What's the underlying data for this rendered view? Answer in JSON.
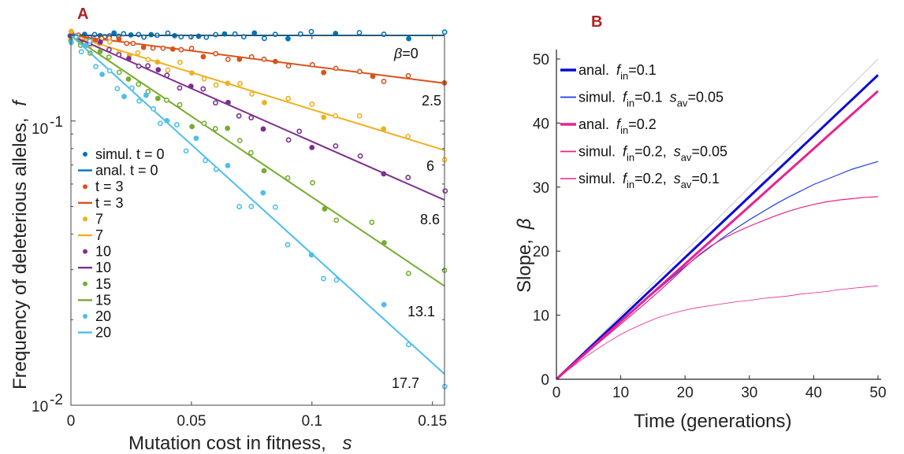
{
  "colors": {
    "t0": "#0072bd",
    "t3": "#d95319",
    "t7": "#edb120",
    "t10": "#7e2f8e",
    "t15": "#77ac30",
    "t20": "#4dbeee",
    "anal01": "#0b0bd6",
    "simul01": "#1a3fe0",
    "anal02": "#e8238f",
    "simul02": "#e8238f",
    "diag": "#c8c8c8"
  },
  "panel_a": {
    "letter": "A",
    "ylabel": "Frequency of deleterious alleles,",
    "ylabel_var": "f",
    "xlabel": "Mutation cost in fitness,",
    "xlabel_var": "s",
    "ytick_base": "10",
    "ytick_exp_top": "-1",
    "ytick_exp_bottom": "-2",
    "xtick_labels": [
      "0",
      "0.05",
      "0.1",
      "0.15"
    ],
    "beta_symbol": "β",
    "slope_labels": [
      "=0",
      "2.5",
      "6",
      "8.6",
      "13.1",
      "17.7"
    ],
    "legend": [
      {
        "label": "simul. t = 0",
        "kind": "dot",
        "color_key": "t0"
      },
      {
        "label": "anal. t = 0",
        "kind": "line",
        "color_key": "t0"
      },
      {
        "label": "t = 3",
        "kind": "dot",
        "color_key": "t3"
      },
      {
        "label": "t = 3",
        "kind": "line",
        "color_key": "t3"
      },
      {
        "label": "7",
        "kind": "dot",
        "color_key": "t7"
      },
      {
        "label": "7",
        "kind": "line",
        "color_key": "t7"
      },
      {
        "label": "10",
        "kind": "dot",
        "color_key": "t10"
      },
      {
        "label": "10",
        "kind": "line",
        "color_key": "t10"
      },
      {
        "label": "15",
        "kind": "dot",
        "color_key": "t15"
      },
      {
        "label": "15",
        "kind": "line",
        "color_key": "t15"
      },
      {
        "label": "20",
        "kind": "dot",
        "color_key": "t20"
      },
      {
        "label": "20",
        "kind": "line",
        "color_key": "t20"
      }
    ]
  },
  "panel_b": {
    "letter": "B",
    "ylabel": "Slope,",
    "ylabel_var": "β",
    "xlabel": "Time (generations)",
    "xtick_labels": [
      "0",
      "10",
      "20",
      "30",
      "40",
      "50"
    ],
    "ytick_labels": [
      "0",
      "10",
      "20",
      "30",
      "40",
      "50"
    ],
    "legend": [
      {
        "pre": "anal.",
        "f_main": "f",
        "f_sub": "in",
        "f_val": "=0.1",
        "s_main": "",
        "s_sub": "",
        "s_val": "",
        "color_key": "anal01",
        "width": 3
      },
      {
        "pre": "simul.",
        "f_main": "f",
        "f_sub": "in",
        "f_val": "=0.1",
        "s_main": "s",
        "s_sub": "av",
        "s_val": "=0.05",
        "color_key": "simul01",
        "width": 1.2
      },
      {
        "pre": "anal.",
        "f_main": "f",
        "f_sub": "in",
        "f_val": "=0.2",
        "s_main": "",
        "s_sub": "",
        "s_val": "",
        "color_key": "anal02",
        "width": 3
      },
      {
        "pre": "simul.",
        "f_main": "f",
        "f_sub": "in",
        "f_val": "=0.2,",
        "s_main": "s",
        "s_sub": "av",
        "s_val": "=0.05",
        "color_key": "simul02",
        "width": 1.2
      },
      {
        "pre": "simul.",
        "f_main": "f",
        "f_sub": "in",
        "f_val": "=0.2,",
        "s_main": "s",
        "s_sub": "av",
        "s_val": "=0.1",
        "color_key": "simul02",
        "width": 0.8
      }
    ]
  },
  "chart_data": [
    {
      "type": "scatter",
      "title": "",
      "xlabel": "Mutation cost in fitness, s",
      "ylabel": "Frequency of deleterious alleles, f",
      "xlim": [
        0,
        0.155
      ],
      "ylim": [
        0.01,
        0.2
      ],
      "yscale": "log",
      "grid": false,
      "legend_position": "left",
      "series": [
        {
          "name": "t = 0",
          "color_key": "t0",
          "f0": 0.2,
          "beta": 0,
          "slope_label": "β=0",
          "noise": 0.018,
          "x": [
            0.0,
            0.002,
            0.004,
            0.006,
            0.008,
            0.01,
            0.012,
            0.014,
            0.016,
            0.018,
            0.02,
            0.022,
            0.025,
            0.028,
            0.03,
            0.033,
            0.036,
            0.04,
            0.043,
            0.046,
            0.05,
            0.053,
            0.056,
            0.06,
            0.064,
            0.068,
            0.072,
            0.076,
            0.08,
            0.085,
            0.09,
            0.095,
            0.1,
            0.11,
            0.12,
            0.13,
            0.14,
            0.155
          ]
        },
        {
          "name": "t = 3",
          "color_key": "t3",
          "f0": 0.2,
          "beta": 2.5,
          "slope_label": "2.5",
          "noise": 0.025,
          "x": [
            0.0,
            0.003,
            0.006,
            0.01,
            0.013,
            0.016,
            0.02,
            0.023,
            0.026,
            0.03,
            0.034,
            0.038,
            0.042,
            0.046,
            0.05,
            0.055,
            0.06,
            0.065,
            0.07,
            0.075,
            0.08,
            0.085,
            0.09,
            0.1,
            0.105,
            0.11,
            0.12,
            0.125,
            0.13,
            0.14,
            0.155
          ]
        },
        {
          "name": "7",
          "color_key": "t7",
          "f0": 0.2,
          "beta": 6,
          "slope_label": "6",
          "noise": 0.04,
          "x": [
            0.0,
            0.004,
            0.008,
            0.012,
            0.016,
            0.02,
            0.024,
            0.028,
            0.032,
            0.036,
            0.04,
            0.045,
            0.05,
            0.055,
            0.06,
            0.065,
            0.07,
            0.075,
            0.08,
            0.09,
            0.1,
            0.105,
            0.11,
            0.12,
            0.13,
            0.14,
            0.155
          ]
        },
        {
          "name": "10",
          "color_key": "t10",
          "f0": 0.2,
          "beta": 8.6,
          "slope_label": "8.6",
          "noise": 0.045,
          "x": [
            0.0,
            0.004,
            0.008,
            0.012,
            0.016,
            0.02,
            0.024,
            0.028,
            0.032,
            0.036,
            0.04,
            0.045,
            0.05,
            0.055,
            0.06,
            0.065,
            0.07,
            0.075,
            0.08,
            0.09,
            0.095,
            0.1,
            0.11,
            0.12,
            0.13,
            0.14,
            0.155
          ]
        },
        {
          "name": "15",
          "color_key": "t15",
          "f0": 0.2,
          "beta": 13.1,
          "slope_label": "13.1",
          "noise": 0.07,
          "x": [
            0.0,
            0.004,
            0.008,
            0.012,
            0.016,
            0.02,
            0.024,
            0.028,
            0.032,
            0.036,
            0.04,
            0.045,
            0.05,
            0.055,
            0.06,
            0.065,
            0.07,
            0.075,
            0.08,
            0.09,
            0.1,
            0.105,
            0.11,
            0.125,
            0.13,
            0.14,
            0.155
          ]
        },
        {
          "name": "20",
          "color_key": "t20",
          "f0": 0.2,
          "beta": 17.7,
          "slope_label": "17.7",
          "noise": 0.1,
          "x": [
            0.0,
            0.002,
            0.004,
            0.006,
            0.008,
            0.01,
            0.013,
            0.016,
            0.019,
            0.022,
            0.025,
            0.028,
            0.031,
            0.034,
            0.037,
            0.04,
            0.044,
            0.048,
            0.052,
            0.056,
            0.06,
            0.065,
            0.07,
            0.075,
            0.08,
            0.085,
            0.09,
            0.1,
            0.105,
            0.11,
            0.13,
            0.14,
            0.155
          ]
        }
      ]
    },
    {
      "type": "line",
      "title": "",
      "xlabel": "Time (generations)",
      "ylabel": "Slope, β",
      "xlim": [
        0,
        50
      ],
      "ylim": [
        0,
        50
      ],
      "grid": false,
      "legend_position": "top-left",
      "x": [
        0,
        2,
        4,
        6,
        8,
        10,
        12,
        14,
        16,
        18,
        20,
        22,
        24,
        26,
        28,
        30,
        32,
        34,
        36,
        38,
        40,
        42,
        44,
        46,
        48,
        50
      ],
      "series": [
        {
          "name": "diagonal",
          "color_key": "diag",
          "width": 1,
          "values": [
            0,
            2,
            4,
            6,
            8,
            10,
            12,
            14,
            16,
            18,
            20,
            22,
            24,
            26,
            28,
            30,
            32,
            34,
            36,
            38,
            40,
            42,
            44,
            46,
            48,
            50
          ]
        },
        {
          "name": "anal. f_in=0.1",
          "color_key": "anal01",
          "width": 3,
          "values": [
            0,
            1.9,
            3.8,
            5.7,
            7.6,
            9.5,
            11.4,
            13.3,
            15.2,
            17.1,
            19,
            20.9,
            22.8,
            24.7,
            26.6,
            28.5,
            30.4,
            32.3,
            34.2,
            36.1,
            38,
            39.9,
            41.8,
            43.7,
            45.6,
            47.5
          ]
        },
        {
          "name": "simul. f_in=0.1 s_av=0.05",
          "color_key": "simul01",
          "width": 1.2,
          "values": [
            0,
            1.8,
            3.6,
            5.4,
            7.2,
            9,
            10.7,
            12.5,
            14.2,
            15.9,
            17.6,
            19.2,
            20.7,
            22.2,
            23.6,
            24.9,
            26.1,
            27.3,
            28.4,
            29.4,
            30.4,
            31.2,
            32,
            32.8,
            33.4,
            34
          ]
        },
        {
          "name": "anal. f_in=0.2",
          "color_key": "anal02",
          "width": 3,
          "values": [
            0,
            1.8,
            3.6,
            5.4,
            7.2,
            9,
            10.8,
            12.6,
            14.4,
            16.2,
            18,
            19.8,
            21.6,
            23.4,
            25.2,
            27,
            28.8,
            30.6,
            32.4,
            34.2,
            36,
            37.8,
            39.6,
            41.4,
            43.2,
            45
          ]
        },
        {
          "name": "simul. f_in=0.2, s_av=0.05",
          "color_key": "simul02",
          "width": 1.2,
          "values": [
            0,
            1.7,
            3.4,
            5.2,
            6.9,
            8.6,
            10.3,
            12,
            13.8,
            15.6,
            17.5,
            19.3,
            20.8,
            22,
            23,
            23.9,
            24.7,
            25.5,
            26.2,
            26.8,
            27.3,
            27.7,
            28,
            28.2,
            28.4,
            28.5
          ]
        },
        {
          "name": "simul. f_in=0.2, s_av=0.1",
          "color_key": "simul02",
          "width": 0.8,
          "values": [
            0,
            1.6,
            3.1,
            4.5,
            5.8,
            7,
            8,
            8.9,
            9.7,
            10.3,
            10.8,
            11.2,
            11.5,
            11.8,
            12.1,
            12.3,
            12.6,
            12.8,
            13,
            13.3,
            13.5,
            13.7,
            14,
            14.2,
            14.4,
            14.6
          ]
        }
      ]
    }
  ]
}
